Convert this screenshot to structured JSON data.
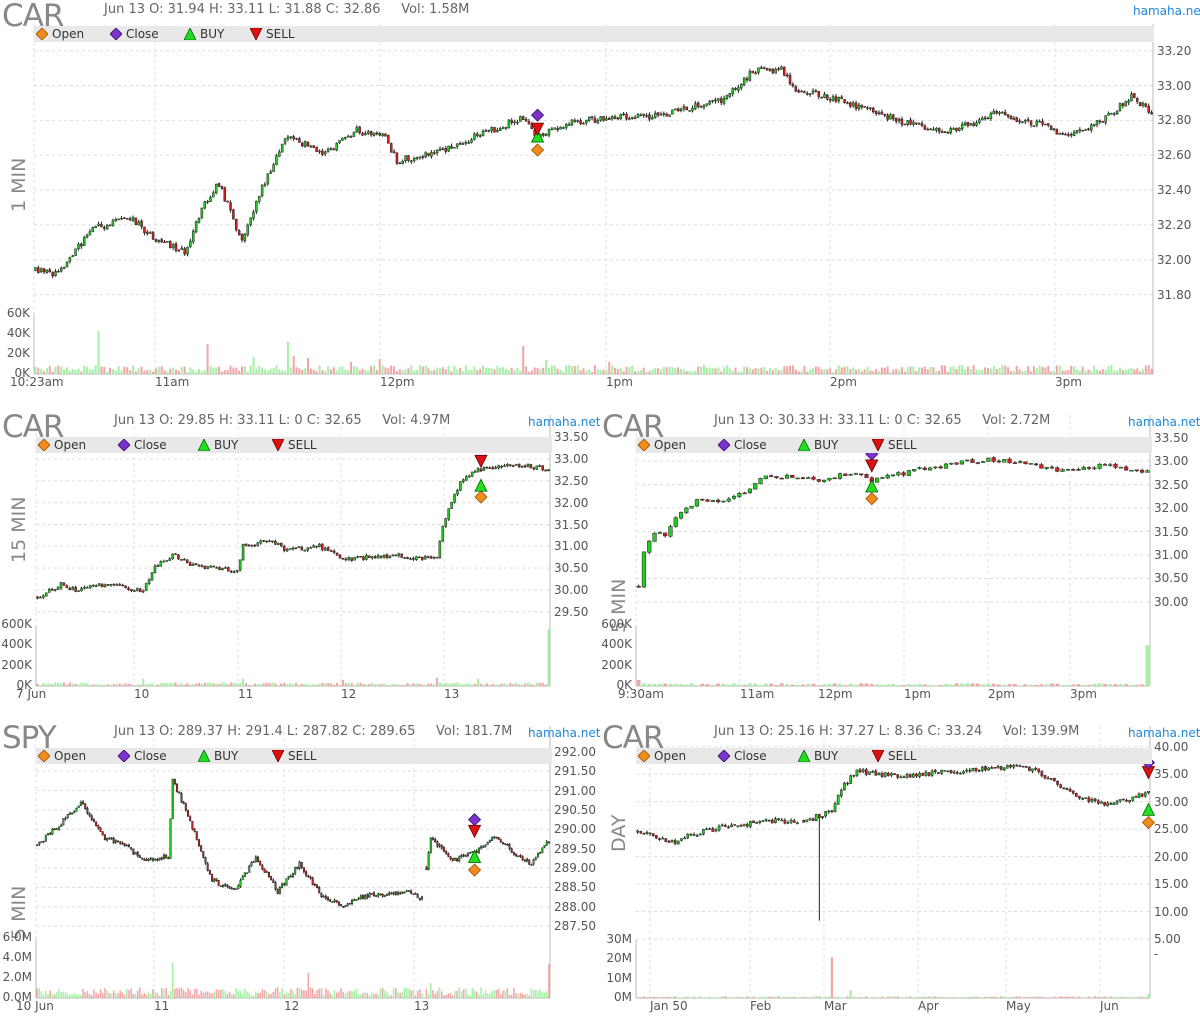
{
  "brand": "hamaha.net",
  "legend": {
    "open": "Open",
    "close": "Close",
    "buy": "BUY",
    "sell": "SELL"
  },
  "colors": {
    "up": "#22cc22",
    "down": "#cc2222",
    "open_marker": "#f08c1e",
    "close_marker": "#7a33cc",
    "buy_marker": "#22dd22",
    "sell_marker": "#dd1111",
    "brand": "#1e88d8"
  },
  "chart_data": [
    {
      "id": "car-1min",
      "type": "candlestick",
      "symbol": "CAR",
      "timeframe": "1 MIN",
      "info": "Jun 13 O: 31.94 H: 33.11 L: 31.88 C: 32.86     Vol: 1.58M",
      "ylim": [
        31.7,
        33.25
      ],
      "y_ticks": [
        "33.20",
        "33.00",
        "32.80",
        "32.60",
        "32.40",
        "32.20",
        "32.00",
        "31.80"
      ],
      "vol_ticks": [
        "60K",
        "40K",
        "20K",
        "0K"
      ],
      "vol_max": 60000,
      "x_ticks": [
        "10:23am",
        "11am",
        "12pm",
        "1pm",
        "2pm",
        "3pm"
      ],
      "anchors": [
        [
          0,
          31.94
        ],
        [
          8,
          31.92
        ],
        [
          20,
          32.18
        ],
        [
          33,
          32.24
        ],
        [
          42,
          32.12
        ],
        [
          52,
          32.04
        ],
        [
          58,
          32.3
        ],
        [
          64,
          32.44
        ],
        [
          72,
          32.1
        ],
        [
          80,
          32.45
        ],
        [
          88,
          32.72
        ],
        [
          100,
          32.6
        ],
        [
          112,
          32.74
        ],
        [
          122,
          32.7
        ],
        [
          126,
          32.57
        ],
        [
          140,
          32.62
        ],
        [
          160,
          32.75
        ],
        [
          170,
          32.82
        ],
        [
          175,
          32.7
        ],
        [
          185,
          32.78
        ],
        [
          200,
          32.82
        ],
        [
          215,
          32.82
        ],
        [
          225,
          32.86
        ],
        [
          240,
          32.92
        ],
        [
          250,
          33.08
        ],
        [
          260,
          33.1
        ],
        [
          265,
          32.98
        ],
        [
          280,
          32.92
        ],
        [
          293,
          32.84
        ],
        [
          305,
          32.78
        ],
        [
          320,
          32.74
        ],
        [
          335,
          32.84
        ],
        [
          350,
          32.78
        ],
        [
          360,
          32.7
        ],
        [
          375,
          32.84
        ],
        [
          382,
          32.94
        ],
        [
          390,
          32.82
        ]
      ],
      "seed": 11,
      "n_candles": 390,
      "vol_base": 5000,
      "vol_spikes": [
        [
          22,
          43000
        ],
        [
          60,
          30000
        ],
        [
          76,
          17000
        ],
        [
          88,
          32000
        ],
        [
          90,
          18000
        ],
        [
          95,
          16000
        ],
        [
          110,
          12000
        ],
        [
          120,
          15000
        ],
        [
          170,
          28000
        ],
        [
          178,
          14000
        ],
        [
          200,
          12000
        ]
      ],
      "markers": {
        "index": 175,
        "open_price": 32.63,
        "buy_price": 32.71,
        "sell_price": 32.75,
        "close_price": 32.83
      }
    },
    {
      "id": "car-15min",
      "type": "candlestick",
      "symbol": "CAR",
      "timeframe": "15 MIN",
      "info": "Jun 13 O: 29.85 H: 33.11 L: 0 C: 32.65     Vol: 4.97M",
      "ylim": [
        29.4,
        33.6
      ],
      "y_ticks": [
        "33.50",
        "33.00",
        "32.50",
        "32.00",
        "31.50",
        "31.00",
        "30.50",
        "30.00",
        "29.50"
      ],
      "vol_ticks": [
        "600K",
        "400K",
        "200K",
        "0K"
      ],
      "vol_max": 600000,
      "x_ticks": [
        "7 Jun",
        "10",
        "11",
        "12",
        "13"
      ],
      "anchors": [
        [
          0,
          29.85
        ],
        [
          8,
          30.12
        ],
        [
          14,
          29.98
        ],
        [
          20,
          30.12
        ],
        [
          30,
          30.05
        ],
        [
          36,
          29.98
        ],
        [
          40,
          30.5
        ],
        [
          46,
          30.8
        ],
        [
          52,
          30.6
        ],
        [
          60,
          30.5
        ],
        [
          68,
          30.42
        ],
        [
          70,
          31.0
        ],
        [
          80,
          31.15
        ],
        [
          84,
          30.9
        ],
        [
          96,
          31.0
        ],
        [
          104,
          30.7
        ],
        [
          112,
          30.75
        ],
        [
          124,
          30.78
        ],
        [
          136,
          30.7
        ],
        [
          138,
          31.5
        ],
        [
          144,
          32.5
        ],
        [
          150,
          32.75
        ],
        [
          162,
          32.9
        ],
        [
          174,
          32.75
        ]
      ],
      "seed": 22,
      "n_candles": 175,
      "vol_base": 20000,
      "vol_spikes": [
        [
          36,
          70000
        ],
        [
          70,
          70000
        ],
        [
          104,
          60000
        ],
        [
          136,
          80000
        ],
        [
          150,
          70000
        ],
        [
          174,
          560000
        ]
      ],
      "markers": {
        "index": 151,
        "open_price": 32.13,
        "buy_price": 32.4,
        "sell_price": 32.95,
        "close_price": 33.3
      }
    },
    {
      "id": "car-5min-a",
      "type": "candlestick",
      "symbol": "CAR",
      "timeframe": "5 MIN",
      "info": "Jun 13 O: 30.33 H: 33.11 L: 0 C: 32.65     Vol: 2.72M",
      "ylim": [
        29.7,
        33.6
      ],
      "y_ticks": [
        "33.50",
        "33.00",
        "32.50",
        "32.00",
        "31.50",
        "31.00",
        "30.50",
        "30.00"
      ],
      "vol_ticks": [
        "600K",
        "400K",
        "200K",
        "0K"
      ],
      "vol_max": 600000,
      "x_ticks": [
        "9:30am",
        "11am",
        "12pm",
        "1pm",
        "2pm",
        "3pm"
      ],
      "anchors": [
        [
          0,
          30.33
        ],
        [
          1,
          31.1
        ],
        [
          3,
          31.5
        ],
        [
          5,
          31.4
        ],
        [
          8,
          31.95
        ],
        [
          12,
          32.2
        ],
        [
          16,
          32.15
        ],
        [
          20,
          32.35
        ],
        [
          24,
          32.7
        ],
        [
          30,
          32.65
        ],
        [
          34,
          32.6
        ],
        [
          40,
          32.75
        ],
        [
          44,
          32.6
        ],
        [
          48,
          32.7
        ],
        [
          54,
          32.85
        ],
        [
          60,
          32.95
        ],
        [
          66,
          33.05
        ],
        [
          72,
          32.95
        ],
        [
          80,
          32.8
        ],
        [
          88,
          32.9
        ],
        [
          96,
          32.75
        ]
      ],
      "seed": 33,
      "n_candles": 97,
      "vol_base": 15000,
      "vol_spikes": [
        [
          0,
          60000
        ],
        [
          96,
          400000
        ]
      ],
      "markers": {
        "index": 44,
        "open_price": 32.2,
        "buy_price": 32.47,
        "sell_price": 32.9,
        "close_price": 33.15
      }
    },
    {
      "id": "spy-5min",
      "type": "candlestick",
      "symbol": "SPY",
      "timeframe": "5 MIN",
      "info": "Jun 13 O: 289.37 H: 291.4 L: 287.82 C: 289.65     Vol: 181.7M",
      "ylim": [
        287.3,
        292.2
      ],
      "y_ticks": [
        "292.00",
        "291.50",
        "291.00",
        "290.50",
        "290.00",
        "289.50",
        "289.00",
        "288.50",
        "288.00",
        "287.50"
      ],
      "vol_ticks": [
        "6.0M",
        "4.0M",
        "2.0M",
        "0.0M"
      ],
      "vol_max": 6000000,
      "x_ticks": [
        "10 Jun",
        "11",
        "12",
        "13"
      ],
      "anchors": [
        [
          0,
          289.6
        ],
        [
          10,
          290.1
        ],
        [
          20,
          290.7
        ],
        [
          30,
          289.8
        ],
        [
          40,
          289.6
        ],
        [
          48,
          289.2
        ],
        [
          60,
          289.3
        ],
        [
          62,
          291.3
        ],
        [
          70,
          290.2
        ],
        [
          80,
          288.7
        ],
        [
          90,
          288.4
        ],
        [
          100,
          289.3
        ],
        [
          110,
          288.4
        ],
        [
          120,
          289.1
        ],
        [
          130,
          288.3
        ],
        [
          140,
          288.0
        ],
        [
          150,
          288.3
        ],
        [
          160,
          288.3
        ],
        [
          170,
          288.4
        ],
        [
          176,
          288.2
        ],
        [
          180,
          289.8
        ],
        [
          190,
          289.2
        ],
        [
          200,
          289.4
        ],
        [
          210,
          289.8
        ],
        [
          220,
          289.3
        ],
        [
          226,
          289.1
        ],
        [
          234,
          289.7
        ]
      ],
      "gaps": [
        177
      ],
      "seed": 44,
      "n_candles": 235,
      "vol_base": 600000,
      "vol_spikes": [
        [
          62,
          3500000
        ],
        [
          124,
          2500000
        ],
        [
          180,
          1500000
        ],
        [
          234,
          3400000
        ]
      ],
      "markers": {
        "index": 200,
        "open_price": 288.95,
        "buy_price": 289.3,
        "sell_price": 289.95,
        "close_price": 290.25
      }
    },
    {
      "id": "car-day",
      "type": "candlestick",
      "symbol": "CAR",
      "timeframe": "DAY",
      "info": "Jun 13 O: 25.16 H: 37.27 L: 8.36 C: 33.24     Vol: 139.9M",
      "ylim": [
        3,
        40.5
      ],
      "y_ticks": [
        "40.00",
        "35.00",
        "30.00",
        "25.00",
        "20.00",
        "15.00",
        "10.00",
        "5.00",
        "-"
      ],
      "vol_ticks": [
        "30M",
        "20M",
        "10M",
        "0M"
      ],
      "vol_max": 30000000,
      "x_ticks": [
        "Jan 50",
        "Feb",
        "Mar",
        "Apr",
        "May",
        "Jun"
      ],
      "anchors": [
        [
          0,
          24.5
        ],
        [
          6,
          23.5
        ],
        [
          12,
          22.8
        ],
        [
          20,
          24.5
        ],
        [
          28,
          25.5
        ],
        [
          34,
          25.8
        ],
        [
          42,
          26.5
        ],
        [
          52,
          26.5
        ],
        [
          56,
          27.0
        ],
        [
          62,
          28.5
        ],
        [
          66,
          33.0
        ],
        [
          70,
          35.5
        ],
        [
          80,
          34.8
        ],
        [
          90,
          35.0
        ],
        [
          100,
          35.5
        ],
        [
          110,
          36.0
        ],
        [
          120,
          36.3
        ],
        [
          126,
          35.8
        ],
        [
          132,
          34.0
        ],
        [
          140,
          31.0
        ],
        [
          150,
          29.5
        ],
        [
          158,
          30.5
        ],
        [
          163,
          32.0
        ]
      ],
      "gaps": [
        52
      ],
      "seed": 55,
      "n_candles": 164,
      "vol_base": 500000,
      "vol_spikes": [
        [
          57,
          1200000
        ],
        [
          62,
          21000000
        ],
        [
          68,
          4000000
        ],
        [
          163,
          2000000
        ]
      ],
      "long_wick": {
        "index": 58,
        "low": 8.36
      },
      "markers": {
        "index": 163,
        "open_price": 26.2,
        "buy_price": 28.6,
        "sell_price": 35.3,
        "close_price": 37.1
      }
    }
  ]
}
